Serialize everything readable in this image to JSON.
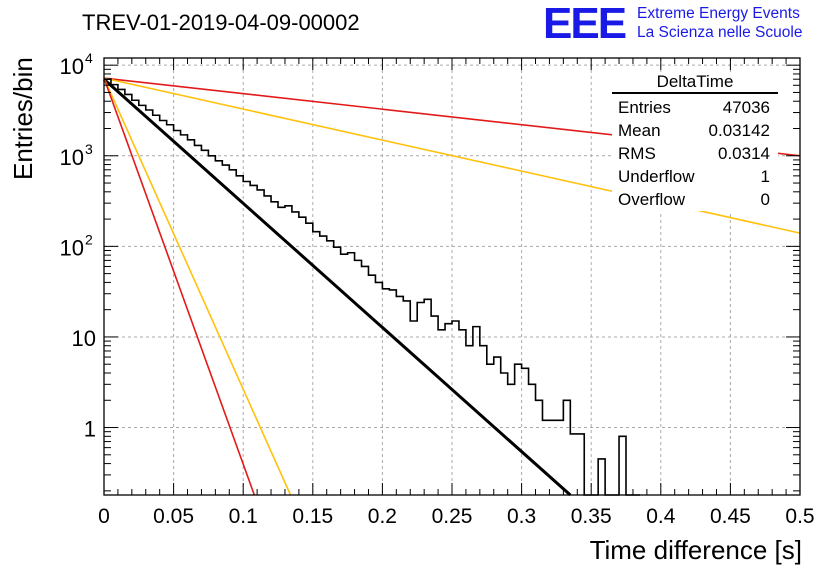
{
  "header": {
    "title": "TREV-01-2019-04-09-00002",
    "logo": "EEE",
    "logo_line1": "Extreme Energy Events",
    "logo_line2": "La Scienza nelle Scuole"
  },
  "stats": {
    "name": "DeltaTime",
    "rows": [
      {
        "label": "Entries",
        "value": "47036"
      },
      {
        "label": "Mean",
        "value": "0.03142"
      },
      {
        "label": "RMS",
        "value": "0.0314"
      },
      {
        "label": "Underflow",
        "value": "1"
      },
      {
        "label": "Overflow",
        "value": "0"
      }
    ]
  },
  "chart_data": {
    "type": "line",
    "title": "TREV-01-2019-04-09-00002",
    "xlabel": "Time difference [s]",
    "ylabel": "Entries/bin",
    "xlim": [
      0,
      0.5
    ],
    "ylim": [
      0.18,
      12000
    ],
    "yscale": "log",
    "grid": true,
    "x_ticks": [
      "0",
      "0.05",
      "0.1",
      "0.15",
      "0.2",
      "0.25",
      "0.3",
      "0.35",
      "0.4",
      "0.45",
      "0.5"
    ],
    "x_tick_values": [
      0,
      0.05,
      0.1,
      0.15,
      0.2,
      0.25,
      0.3,
      0.35,
      0.4,
      0.45,
      0.5
    ],
    "y_ticks": [
      {
        "value": 1,
        "label": "1"
      },
      {
        "value": 10,
        "label": "10"
      },
      {
        "value": 100,
        "label": "10",
        "exp": "2"
      },
      {
        "value": 1000,
        "label": "10",
        "exp": "3"
      },
      {
        "value": 10000,
        "label": "10",
        "exp": "4"
      }
    ],
    "histogram": {
      "bin_width": 0.005,
      "values": [
        7000,
        6100,
        5400,
        4750,
        4100,
        3600,
        3200,
        2800,
        2450,
        2200,
        1900,
        1700,
        1500,
        1300,
        1150,
        1000,
        880,
        790,
        700,
        600,
        520,
        470,
        420,
        360,
        310,
        270,
        280,
        240,
        210,
        180,
        145,
        130,
        115,
        98,
        82,
        85,
        70,
        60,
        48,
        40,
        34,
        33,
        28,
        25,
        15,
        24,
        26,
        17,
        12,
        14,
        15,
        12,
        8,
        13,
        8,
        5,
        6,
        4,
        3,
        5,
        4.5,
        3,
        2,
        1.2,
        1.2,
        1.2,
        2,
        0.85,
        0.85,
        0,
        0.18,
        0.45,
        0.18,
        0,
        0.8,
        0.18,
        0.18
      ]
    },
    "fit_lines": [
      {
        "color": "#000000",
        "width": 3,
        "x": [
          0,
          0.335
        ],
        "y": [
          7000,
          0.18
        ]
      },
      {
        "color": "#e31a1a",
        "width": 1.6,
        "x": [
          0,
          0.5
        ],
        "y": [
          7200,
          1000
        ]
      },
      {
        "color": "#ffc20e",
        "width": 1.6,
        "x": [
          0,
          0.5
        ],
        "y": [
          7200,
          140
        ]
      },
      {
        "color": "#ffc20e",
        "width": 1.6,
        "x": [
          0,
          0.134
        ],
        "y": [
          7200,
          0.18
        ]
      },
      {
        "color": "#e31a1a",
        "width": 1.6,
        "x": [
          0,
          0.108
        ],
        "y": [
          7200,
          0.18
        ]
      }
    ]
  }
}
